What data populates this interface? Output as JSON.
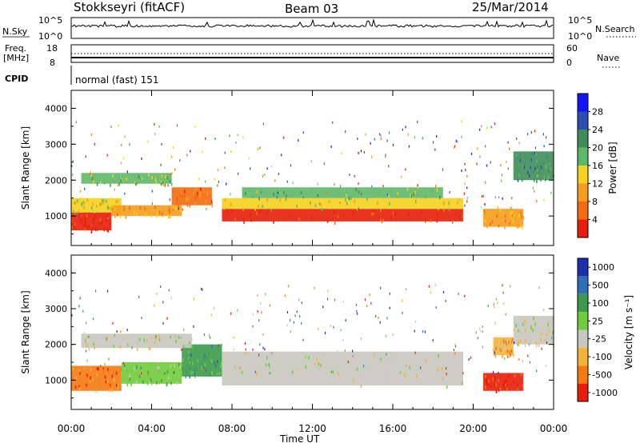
{
  "header": {
    "station": "Stokkseyri (fitACF)",
    "beam": "Beam 03",
    "date": "25/Mar/2014"
  },
  "top_panels": {
    "nsky_label": "N.Sky",
    "nsky_ticks": [
      "10^5",
      "10^0"
    ],
    "nsearch_label": "N.Search",
    "nsearch_ticks": [
      "10^5",
      "10^0"
    ],
    "freq_label_1": "Freq.",
    "freq_label_2": "[MHz]",
    "freq_ticks": [
      "18",
      "8"
    ],
    "nave_label": "Nave",
    "nave_ticks": [
      "60",
      "0"
    ],
    "cpid_label": "CPID",
    "cpid_value": "normal (fast) 151"
  },
  "chart_data": [
    {
      "type": "heatmap",
      "name": "power",
      "ylabel": "Slant Range [km]",
      "ylim": [
        180,
        4500
      ],
      "yticks": [
        "1000",
        "2000",
        "3000",
        "4000"
      ],
      "colorbar_label": "Power [dB]",
      "colorbar_ticks": [
        "4",
        "8",
        "12",
        "16",
        "20",
        "24",
        "28"
      ],
      "colors": [
        "#1414ff",
        "#2a4fb2",
        "#3f8e5a",
        "#5fb86a",
        "#f5d21c",
        "#f59d1c",
        "#f56a12",
        "#e81e0a"
      ],
      "bands": [
        {
          "t0": 0.0,
          "t1": 2.0,
          "r0": 600,
          "r1": 1100,
          "level": 7
        },
        {
          "t0": 0.0,
          "t1": 2.5,
          "r0": 1100,
          "r1": 1500,
          "level": 4
        },
        {
          "t0": 0.5,
          "t1": 5.0,
          "r0": 1900,
          "r1": 2200,
          "level": 3
        },
        {
          "t0": 2.0,
          "t1": 5.5,
          "r0": 1000,
          "r1": 1300,
          "level": 5
        },
        {
          "t0": 5.0,
          "t1": 7.0,
          "r0": 1300,
          "r1": 1800,
          "level": 6
        },
        {
          "t0": 7.5,
          "t1": 19.5,
          "r0": 850,
          "r1": 1200,
          "level": 7
        },
        {
          "t0": 7.5,
          "t1": 19.5,
          "r0": 1200,
          "r1": 1500,
          "level": 4
        },
        {
          "t0": 8.5,
          "t1": 18.5,
          "r0": 1500,
          "r1": 1800,
          "level": 3
        },
        {
          "t0": 20.5,
          "t1": 22.5,
          "r0": 700,
          "r1": 1200,
          "level": 5
        },
        {
          "t0": 22.0,
          "t1": 24.0,
          "r0": 2000,
          "r1": 2800,
          "level": 2
        }
      ]
    },
    {
      "type": "heatmap",
      "name": "velocity",
      "ylabel": "Slant Range [km]",
      "ylim": [
        180,
        4500
      ],
      "yticks": [
        "1000",
        "2000",
        "3000",
        "4000"
      ],
      "colorbar_label": "Velocity [m s⁻¹]",
      "colorbar_ticks": [
        "1000",
        "500",
        "100",
        "25",
        "-25",
        "-100",
        "-500",
        "-1000"
      ],
      "colors": [
        "#1a2fb0",
        "#2e6fb8",
        "#3c9a4a",
        "#6fcc3a",
        "#c8c8c0",
        "#f5b23a",
        "#f57a12",
        "#e81e0a"
      ],
      "bands": [
        {
          "t0": 0.0,
          "t1": 2.5,
          "r0": 700,
          "r1": 1400,
          "level": 6
        },
        {
          "t0": 2.5,
          "t1": 5.5,
          "r0": 900,
          "r1": 1500,
          "level": 3
        },
        {
          "t0": 5.5,
          "t1": 7.5,
          "r0": 1100,
          "r1": 2000,
          "level": 2
        },
        {
          "t0": 0.5,
          "t1": 6.0,
          "r0": 1900,
          "r1": 2300,
          "level": 4
        },
        {
          "t0": 7.5,
          "t1": 19.5,
          "r0": 850,
          "r1": 1800,
          "level": 4
        },
        {
          "t0": 20.5,
          "t1": 22.5,
          "r0": 700,
          "r1": 1200,
          "level": 7
        },
        {
          "t0": 21.0,
          "t1": 22.0,
          "r0": 1700,
          "r1": 2200,
          "level": 5
        },
        {
          "t0": 22.0,
          "t1": 24.0,
          "r0": 2000,
          "r1": 2800,
          "level": 4
        }
      ]
    }
  ],
  "time_axis": {
    "ticks": [
      "00:00",
      "04:00",
      "08:00",
      "12:00",
      "16:00",
      "20:00",
      "00:00"
    ],
    "label": "Time UT"
  }
}
